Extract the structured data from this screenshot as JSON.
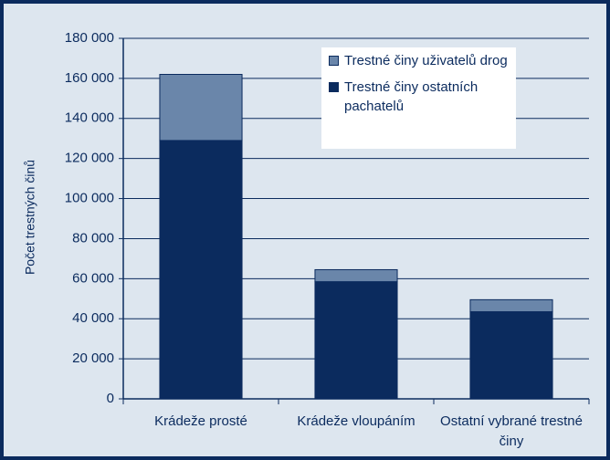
{
  "chart_data": {
    "type": "stacked_bar",
    "y_label": "Počet trestných činů",
    "categories": [
      "Krádeže prosté",
      "Krádeže vloupáním",
      "Ostatní vybrané trestné činy"
    ],
    "series": [
      {
        "name": "Trestné činy ostatních pachatelů",
        "color": "#0b2b5e",
        "values": [
          129000,
          58500,
          43500
        ]
      },
      {
        "name": "Trestné činy uživatelů drog",
        "color": "#6a86aa",
        "values": [
          33000,
          6000,
          6000
        ]
      }
    ],
    "ylim": [
      0,
      180000
    ],
    "yticks": [
      0,
      {
        "value": 20000,
        "label": "20 000"
      },
      {
        "value": 40000,
        "label": "40 000"
      },
      {
        "value": 60000,
        "label": "60 000"
      },
      {
        "value": 80000,
        "label": "80 000"
      },
      {
        "value": 100000,
        "label": "100 000"
      },
      {
        "value": 120000,
        "label": "120 000"
      },
      {
        "value": 140000,
        "label": "140 000"
      },
      {
        "value": 160000,
        "label": "160 000"
      },
      {
        "value": 180000,
        "label": "180 000"
      }
    ],
    "grid": true
  }
}
